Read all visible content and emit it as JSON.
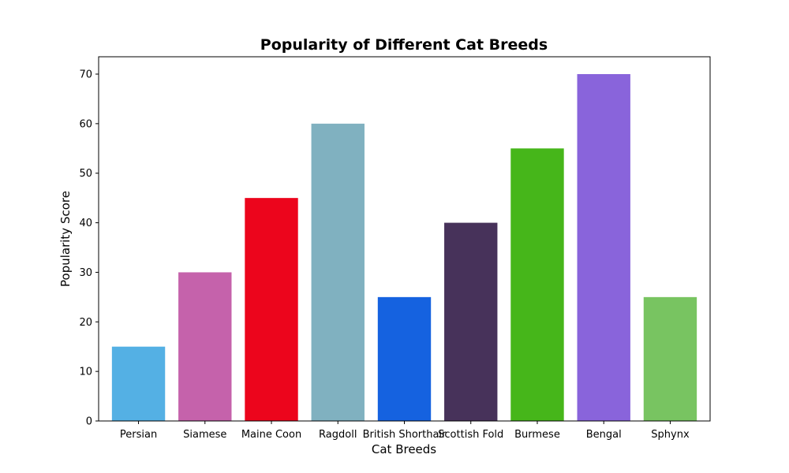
{
  "chart_data": {
    "type": "bar",
    "title": "Popularity of Different Cat Breeds",
    "xlabel": "Cat Breeds",
    "ylabel": "Popularity Score",
    "categories": [
      "Persian",
      "Siamese",
      "Maine Coon",
      "Ragdoll",
      "British Shorthair",
      "Scottish Fold",
      "Burmese",
      "Bengal",
      "Sphynx"
    ],
    "values": [
      15,
      30,
      45,
      60,
      25,
      40,
      55,
      70,
      25
    ],
    "colors": [
      "#54b0e4",
      "#c562ab",
      "#ec051c",
      "#80b1c0",
      "#1562e0",
      "#47325a",
      "#46b61a",
      "#8964db",
      "#78c461"
    ],
    "ylim": [
      0,
      73.5
    ],
    "yticks": [
      0,
      10,
      20,
      30,
      40,
      50,
      60,
      70
    ],
    "grid": false,
    "legend": "none"
  }
}
